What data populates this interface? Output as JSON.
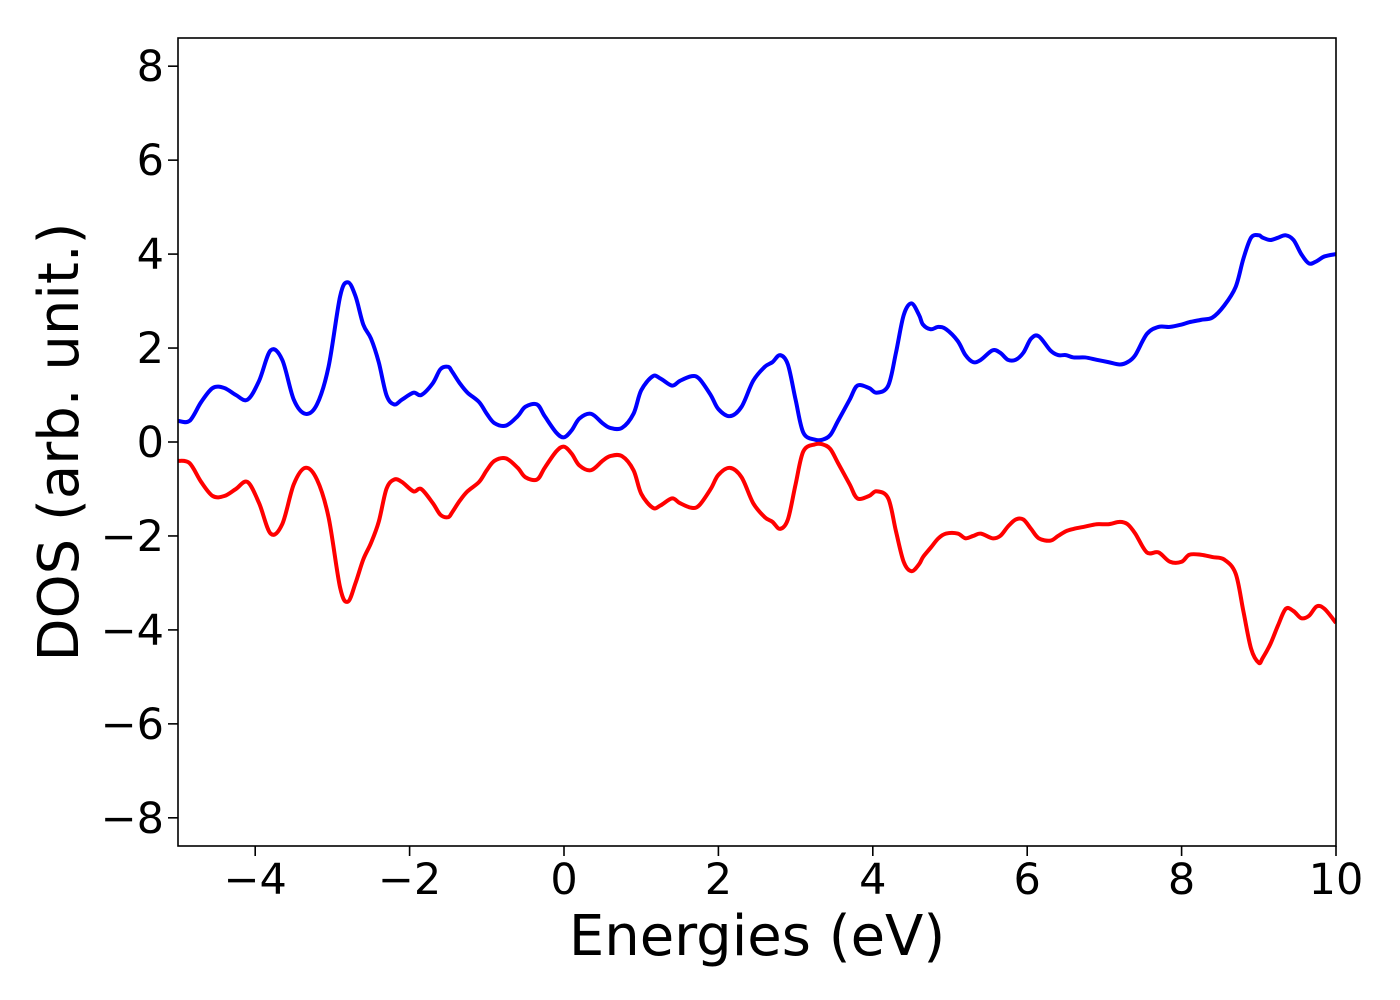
{
  "chart_data": {
    "type": "line",
    "xlabel": "Energies (eV)",
    "ylabel": "DOS (arb. unit.)",
    "xlim": [
      -5,
      10
    ],
    "ylim": [
      -8.6,
      8.6
    ],
    "xticks": [
      -4,
      -2,
      0,
      2,
      4,
      6,
      8,
      10
    ],
    "xtick_labels": [
      "−4",
      "−2",
      "0",
      "2",
      "4",
      "6",
      "8",
      "10"
    ],
    "yticks": [
      8,
      6,
      4,
      2,
      0,
      -2,
      -4,
      -6,
      -8
    ],
    "ytick_labels": [
      "8",
      "6",
      "4",
      "2",
      "0",
      "−2",
      "−4",
      "−6",
      "−8"
    ],
    "grid": false,
    "series": [
      {
        "color": "#0000ff",
        "x": [
          -5.0,
          -4.85,
          -4.7,
          -4.55,
          -4.4,
          -4.25,
          -4.1,
          -3.95,
          -3.8,
          -3.65,
          -3.5,
          -3.35,
          -3.2,
          -3.05,
          -2.9,
          -2.8,
          -2.7,
          -2.6,
          -2.5,
          -2.4,
          -2.3,
          -2.2,
          -2.1,
          -1.95,
          -1.85,
          -1.7,
          -1.6,
          -1.5,
          -1.45,
          -1.35,
          -1.25,
          -1.1,
          -1.0,
          -0.9,
          -0.75,
          -0.6,
          -0.5,
          -0.35,
          -0.25,
          -0.1,
          0.0,
          0.1,
          0.2,
          0.35,
          0.5,
          0.6,
          0.75,
          0.9,
          1.0,
          1.15,
          1.25,
          1.4,
          1.5,
          1.65,
          1.75,
          1.9,
          2.0,
          2.15,
          2.3,
          2.45,
          2.6,
          2.7,
          2.8,
          2.9,
          3.0,
          3.1,
          3.25,
          3.35,
          3.45,
          3.55,
          3.7,
          3.8,
          3.95,
          4.05,
          4.2,
          4.3,
          4.4,
          4.5,
          4.6,
          4.65,
          4.75,
          4.85,
          4.95,
          5.1,
          5.2,
          5.3,
          5.4,
          5.55,
          5.65,
          5.75,
          5.85,
          5.95,
          6.05,
          6.15,
          6.3,
          6.4,
          6.5,
          6.6,
          6.75,
          6.9,
          7.05,
          7.2,
          7.3,
          7.4,
          7.55,
          7.7,
          7.85,
          8.0,
          8.1,
          8.25,
          8.4,
          8.55,
          8.7,
          8.8,
          8.9,
          9.0,
          9.05,
          9.15,
          9.25,
          9.35,
          9.45,
          9.55,
          9.65,
          9.75,
          9.85,
          10.0
        ],
        "y": [
          0.45,
          0.45,
          0.85,
          1.15,
          1.15,
          1.0,
          0.9,
          1.3,
          1.95,
          1.75,
          0.9,
          0.6,
          0.8,
          1.6,
          3.1,
          3.4,
          3.1,
          2.5,
          2.2,
          1.7,
          1.0,
          0.8,
          0.9,
          1.05,
          1.0,
          1.25,
          1.55,
          1.6,
          1.5,
          1.25,
          1.05,
          0.85,
          0.6,
          0.4,
          0.35,
          0.55,
          0.75,
          0.8,
          0.55,
          0.2,
          0.1,
          0.25,
          0.5,
          0.6,
          0.4,
          0.3,
          0.3,
          0.6,
          1.1,
          1.4,
          1.35,
          1.2,
          1.3,
          1.4,
          1.35,
          1.0,
          0.7,
          0.55,
          0.75,
          1.3,
          1.6,
          1.7,
          1.85,
          1.65,
          0.9,
          0.2,
          0.05,
          0.05,
          0.15,
          0.45,
          0.9,
          1.2,
          1.15,
          1.05,
          1.2,
          1.9,
          2.7,
          2.95,
          2.7,
          2.5,
          2.4,
          2.45,
          2.4,
          2.15,
          1.85,
          1.7,
          1.75,
          1.95,
          1.9,
          1.75,
          1.75,
          1.9,
          2.2,
          2.25,
          1.95,
          1.85,
          1.85,
          1.8,
          1.8,
          1.75,
          1.7,
          1.65,
          1.7,
          1.85,
          2.3,
          2.45,
          2.45,
          2.5,
          2.55,
          2.6,
          2.65,
          2.9,
          3.3,
          3.9,
          4.35,
          4.4,
          4.35,
          4.3,
          4.35,
          4.4,
          4.3,
          4.0,
          3.8,
          3.85,
          3.95,
          4.0
        ]
      },
      {
        "color": "#ff0000",
        "x": [
          -5.0,
          -4.85,
          -4.7,
          -4.55,
          -4.4,
          -4.25,
          -4.1,
          -3.95,
          -3.8,
          -3.65,
          -3.5,
          -3.35,
          -3.2,
          -3.05,
          -2.9,
          -2.8,
          -2.7,
          -2.6,
          -2.5,
          -2.4,
          -2.3,
          -2.2,
          -2.1,
          -1.95,
          -1.85,
          -1.7,
          -1.6,
          -1.5,
          -1.45,
          -1.35,
          -1.25,
          -1.1,
          -1.0,
          -0.9,
          -0.75,
          -0.6,
          -0.5,
          -0.35,
          -0.25,
          -0.1,
          0.0,
          0.1,
          0.2,
          0.35,
          0.5,
          0.6,
          0.75,
          0.9,
          1.0,
          1.15,
          1.25,
          1.4,
          1.5,
          1.65,
          1.75,
          1.9,
          2.0,
          2.15,
          2.3,
          2.45,
          2.6,
          2.7,
          2.8,
          2.9,
          3.0,
          3.1,
          3.25,
          3.35,
          3.45,
          3.55,
          3.7,
          3.8,
          3.95,
          4.05,
          4.2,
          4.3,
          4.4,
          4.5,
          4.6,
          4.65,
          4.75,
          4.85,
          4.95,
          5.1,
          5.2,
          5.3,
          5.4,
          5.55,
          5.65,
          5.75,
          5.85,
          5.95,
          6.05,
          6.15,
          6.3,
          6.4,
          6.5,
          6.6,
          6.75,
          6.9,
          7.05,
          7.2,
          7.3,
          7.4,
          7.55,
          7.7,
          7.85,
          8.0,
          8.1,
          8.25,
          8.4,
          8.55,
          8.7,
          8.8,
          8.9,
          9.0,
          9.05,
          9.15,
          9.25,
          9.35,
          9.45,
          9.55,
          9.65,
          9.75,
          9.85,
          10.0
        ],
        "y": [
          -0.4,
          -0.45,
          -0.85,
          -1.15,
          -1.15,
          -1.0,
          -0.85,
          -1.3,
          -1.95,
          -1.75,
          -0.9,
          -0.55,
          -0.8,
          -1.6,
          -3.1,
          -3.4,
          -3.0,
          -2.5,
          -2.15,
          -1.7,
          -1.0,
          -0.8,
          -0.85,
          -1.05,
          -1.0,
          -1.3,
          -1.55,
          -1.6,
          -1.5,
          -1.25,
          -1.05,
          -0.85,
          -0.6,
          -0.4,
          -0.35,
          -0.55,
          -0.75,
          -0.8,
          -0.55,
          -0.2,
          -0.1,
          -0.25,
          -0.5,
          -0.6,
          -0.4,
          -0.3,
          -0.3,
          -0.6,
          -1.1,
          -1.4,
          -1.35,
          -1.2,
          -1.3,
          -1.4,
          -1.35,
          -1.0,
          -0.7,
          -0.55,
          -0.75,
          -1.3,
          -1.6,
          -1.7,
          -1.85,
          -1.65,
          -0.9,
          -0.2,
          -0.05,
          -0.05,
          -0.15,
          -0.45,
          -0.9,
          -1.2,
          -1.15,
          -1.05,
          -1.2,
          -1.9,
          -2.55,
          -2.75,
          -2.6,
          -2.45,
          -2.25,
          -2.05,
          -1.95,
          -1.95,
          -2.05,
          -2.0,
          -1.95,
          -2.05,
          -2.0,
          -1.8,
          -1.65,
          -1.65,
          -1.85,
          -2.05,
          -2.1,
          -2.0,
          -1.9,
          -1.85,
          -1.8,
          -1.75,
          -1.75,
          -1.7,
          -1.75,
          -1.95,
          -2.35,
          -2.35,
          -2.55,
          -2.55,
          -2.4,
          -2.4,
          -2.45,
          -2.5,
          -2.8,
          -3.6,
          -4.4,
          -4.7,
          -4.6,
          -4.3,
          -3.9,
          -3.55,
          -3.6,
          -3.75,
          -3.7,
          -3.5,
          -3.55,
          -3.85
        ]
      }
    ]
  }
}
